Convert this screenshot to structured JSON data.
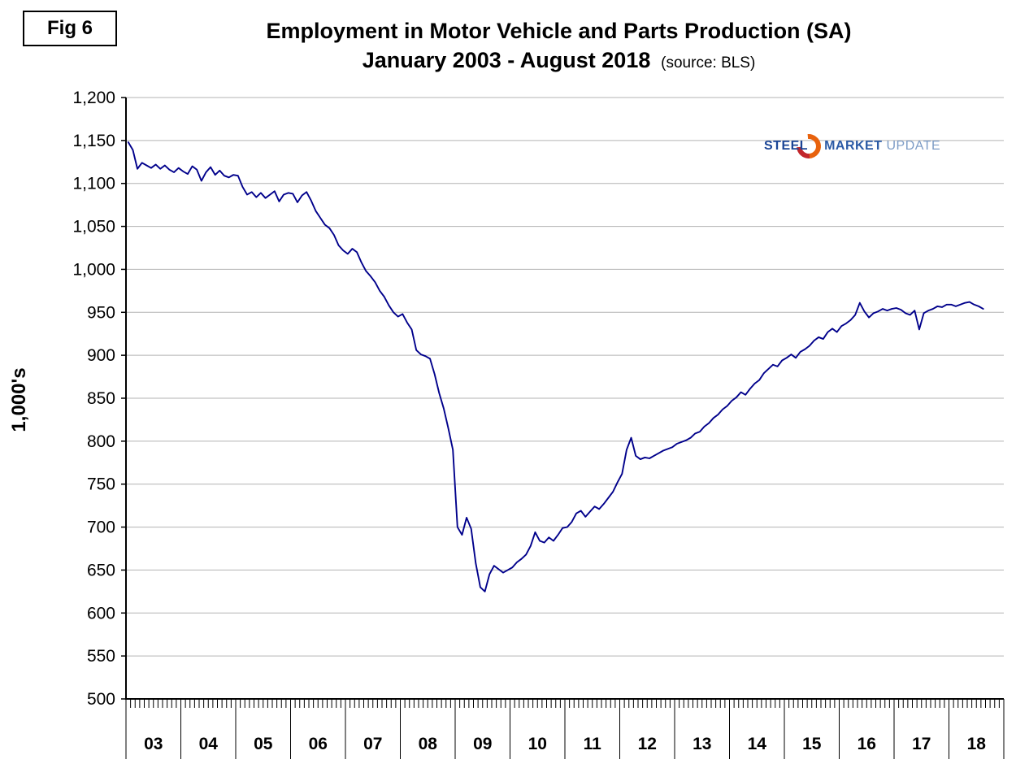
{
  "fig_label": "Fig 6",
  "header": {
    "title": "Employment in Motor Vehicle and Parts Production (SA)",
    "subtitle": "January 2003 - August 2018",
    "source_note": "(source: BLS)"
  },
  "logo": {
    "steel": "STEEL",
    "market": "MARKET",
    "update": "UPDATE",
    "swoosh_icon": "orange-swoosh-circle",
    "steel_color": "#1b4596",
    "update_color": "#7d9cc6",
    "swoosh_color": "#e8620d"
  },
  "chart_data": {
    "type": "line",
    "title": "Employment in Motor Vehicle and Parts Production (SA)",
    "subtitle": "January 2003 - August 2018 (source: BLS)",
    "ylabel": "1,000's",
    "xlabel": "",
    "ylim": [
      500,
      1200
    ],
    "ytick_step": 50,
    "y_tick_labels": [
      "500",
      "550",
      "600",
      "650",
      "700",
      "750",
      "800",
      "850",
      "900",
      "950",
      "1,000",
      "1,050",
      "1,100",
      "1,150",
      "1,200"
    ],
    "x_year_labels": [
      "03",
      "04",
      "05",
      "06",
      "07",
      "08",
      "09",
      "10",
      "11",
      "12",
      "13",
      "14",
      "15",
      "16",
      "17",
      "18"
    ],
    "x_start": "2003-01",
    "x_end": "2018-08",
    "grid": true,
    "legend": "none",
    "line_color": "#00008B",
    "grid_color": "#b3b3b3",
    "axis_color": "#000000",
    "series": [
      {
        "name": "Motor Vehicle and Parts Employment (thousands, SA)",
        "values": [
          1148,
          1139,
          1117,
          1124,
          1121,
          1118,
          1122,
          1117,
          1121,
          1116,
          1113,
          1118,
          1114,
          1111,
          1120,
          1116,
          1103,
          1113,
          1119,
          1110,
          1115,
          1109,
          1107,
          1110,
          1109,
          1096,
          1087,
          1090,
          1084,
          1089,
          1083,
          1087,
          1091,
          1079,
          1087,
          1089,
          1088,
          1078,
          1086,
          1090,
          1080,
          1068,
          1060,
          1052,
          1048,
          1040,
          1028,
          1022,
          1018,
          1024,
          1020,
          1008,
          998,
          992,
          985,
          975,
          968,
          958,
          950,
          945,
          948,
          938,
          930,
          906,
          901,
          899,
          896,
          878,
          856,
          838,
          815,
          790,
          700,
          691,
          711,
          698,
          658,
          630,
          625,
          645,
          655,
          651,
          647,
          650,
          653,
          659,
          663,
          668,
          678,
          694,
          684,
          682,
          688,
          684,
          691,
          699,
          700,
          706,
          716,
          719,
          712,
          718,
          724,
          721,
          727,
          734,
          741,
          752,
          762,
          790,
          804,
          783,
          779,
          781,
          780,
          783,
          786,
          789,
          791,
          793,
          797,
          799,
          801,
          804,
          809,
          811,
          817,
          821,
          827,
          831,
          837,
          841,
          847,
          851,
          857,
          854,
          861,
          867,
          871,
          879,
          884,
          889,
          887,
          894,
          897,
          901,
          897,
          904,
          907,
          911,
          917,
          921,
          919,
          927,
          931,
          927,
          934,
          937,
          941,
          947,
          961,
          951,
          944,
          949,
          951,
          954,
          952,
          954,
          955,
          953,
          949,
          947,
          952,
          930,
          949,
          952,
          954,
          957,
          956,
          959,
          959,
          957,
          959,
          961,
          962,
          959,
          957,
          954
        ]
      }
    ]
  }
}
